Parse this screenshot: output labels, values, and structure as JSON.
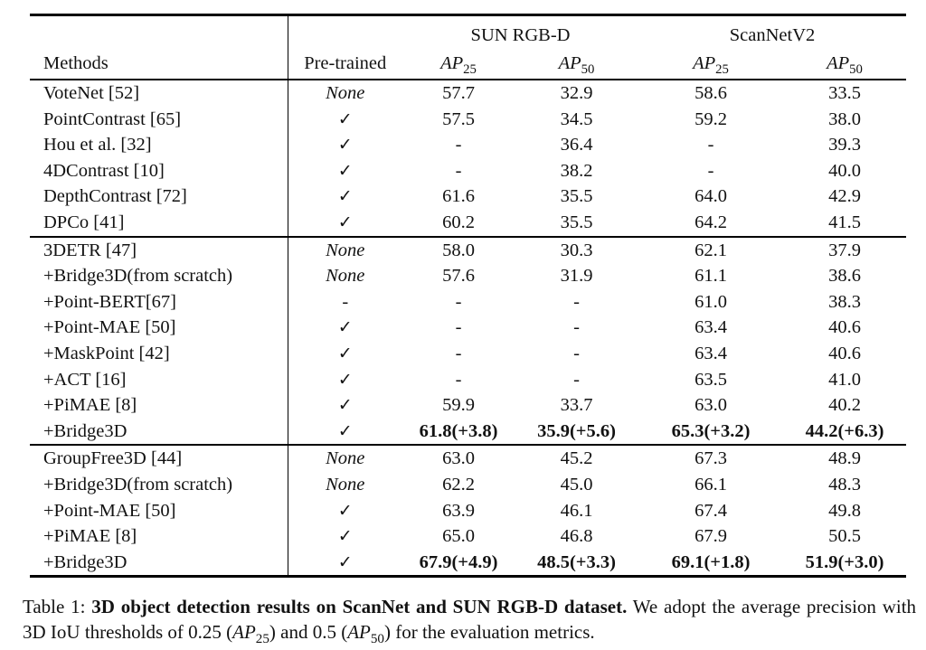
{
  "table": {
    "header": {
      "methods": "Methods",
      "pretrained": "Pre-trained",
      "groups": [
        {
          "label": "SUN RGB-D"
        },
        {
          "label": "ScanNetV2"
        }
      ],
      "ap_cols": [
        {
          "name": "AP",
          "sub": "25"
        },
        {
          "name": "AP",
          "sub": "50"
        },
        {
          "name": "AP",
          "sub": "25"
        },
        {
          "name": "AP",
          "sub": "50"
        }
      ]
    },
    "sections": [
      {
        "rows": [
          {
            "method": "VoteNet [52]",
            "pretrained": "None",
            "values": [
              "57.7",
              "32.9",
              "58.6",
              "33.5"
            ]
          },
          {
            "method": "PointContrast [65]",
            "pretrained": "✓",
            "values": [
              "57.5",
              "34.5",
              "59.2",
              "38.0"
            ]
          },
          {
            "method": "Hou et al. [32]",
            "pretrained": "✓",
            "values": [
              "-",
              "36.4",
              "-",
              "39.3"
            ]
          },
          {
            "method": "4DContrast [10]",
            "pretrained": "✓",
            "values": [
              "-",
              "38.2",
              "-",
              "40.0"
            ]
          },
          {
            "method": "DepthContrast [72]",
            "pretrained": "✓",
            "values": [
              "61.6",
              "35.5",
              "64.0",
              "42.9"
            ]
          },
          {
            "method": "DPCo [41]",
            "pretrained": "✓",
            "values": [
              "60.2",
              "35.5",
              "64.2",
              "41.5"
            ]
          }
        ]
      },
      {
        "rows": [
          {
            "method": "3DETR [47]",
            "pretrained": "None",
            "values": [
              "58.0",
              "30.3",
              "62.1",
              "37.9"
            ]
          },
          {
            "method": "+Bridge3D(from scratch)",
            "pretrained": "None",
            "values": [
              "57.6",
              "31.9",
              "61.1",
              "38.6"
            ]
          },
          {
            "method": "+Point-BERT[67]",
            "pretrained": "-",
            "values": [
              "-",
              "-",
              "61.0",
              "38.3"
            ]
          },
          {
            "method": "+Point-MAE [50]",
            "pretrained": "✓",
            "values": [
              "-",
              "-",
              "63.4",
              "40.6"
            ]
          },
          {
            "method": "+MaskPoint [42]",
            "pretrained": "✓",
            "values": [
              "-",
              "-",
              "63.4",
              "40.6"
            ]
          },
          {
            "method": "+ACT [16]",
            "pretrained": "✓",
            "values": [
              "-",
              "-",
              "63.5",
              "41.0"
            ]
          },
          {
            "method": "+PiMAE [8]",
            "pretrained": "✓",
            "values": [
              "59.9",
              "33.7",
              "63.0",
              "40.2"
            ]
          },
          {
            "method": "+Bridge3D",
            "pretrained": "✓",
            "values": [
              "61.8(+3.8)",
              "35.9(+5.6)",
              "65.3(+3.2)",
              "44.2(+6.3)"
            ]
          }
        ]
      },
      {
        "rows": [
          {
            "method": "GroupFree3D [44]",
            "pretrained": "None",
            "values": [
              "63.0",
              "45.2",
              "67.3",
              "48.9"
            ]
          },
          {
            "method": "+Bridge3D(from scratch)",
            "pretrained": "None",
            "values": [
              "62.2",
              "45.0",
              "66.1",
              "48.3"
            ]
          },
          {
            "method": "+Point-MAE [50]",
            "pretrained": "✓",
            "values": [
              "63.9",
              "46.1",
              "67.4",
              "49.8"
            ]
          },
          {
            "method": "+PiMAE [8]",
            "pretrained": "✓",
            "values": [
              "65.0",
              "46.8",
              "67.9",
              "50.5"
            ]
          },
          {
            "method": "+Bridge3D",
            "pretrained": "✓",
            "values": [
              "67.9(+4.9)",
              "48.5(+3.3)",
              "69.1(+1.8)",
              "51.9(+3.0)"
            ]
          }
        ]
      }
    ]
  },
  "caption": {
    "label": "Table 1:",
    "bold": "3D object detection results on ScanNet and SUN RGB-D dataset.",
    "text_a": "We adopt the average precision with 3D IoU thresholds of 0.25 (",
    "ap1": "AP",
    "ap1_sub": "25",
    "text_b": ") and 0.5 (",
    "ap2": "AP",
    "ap2_sub": "50",
    "text_c": ") for the evaluation metrics."
  },
  "colors": {
    "text": "#121212",
    "rule": "#000000",
    "background": "#ffffff"
  }
}
